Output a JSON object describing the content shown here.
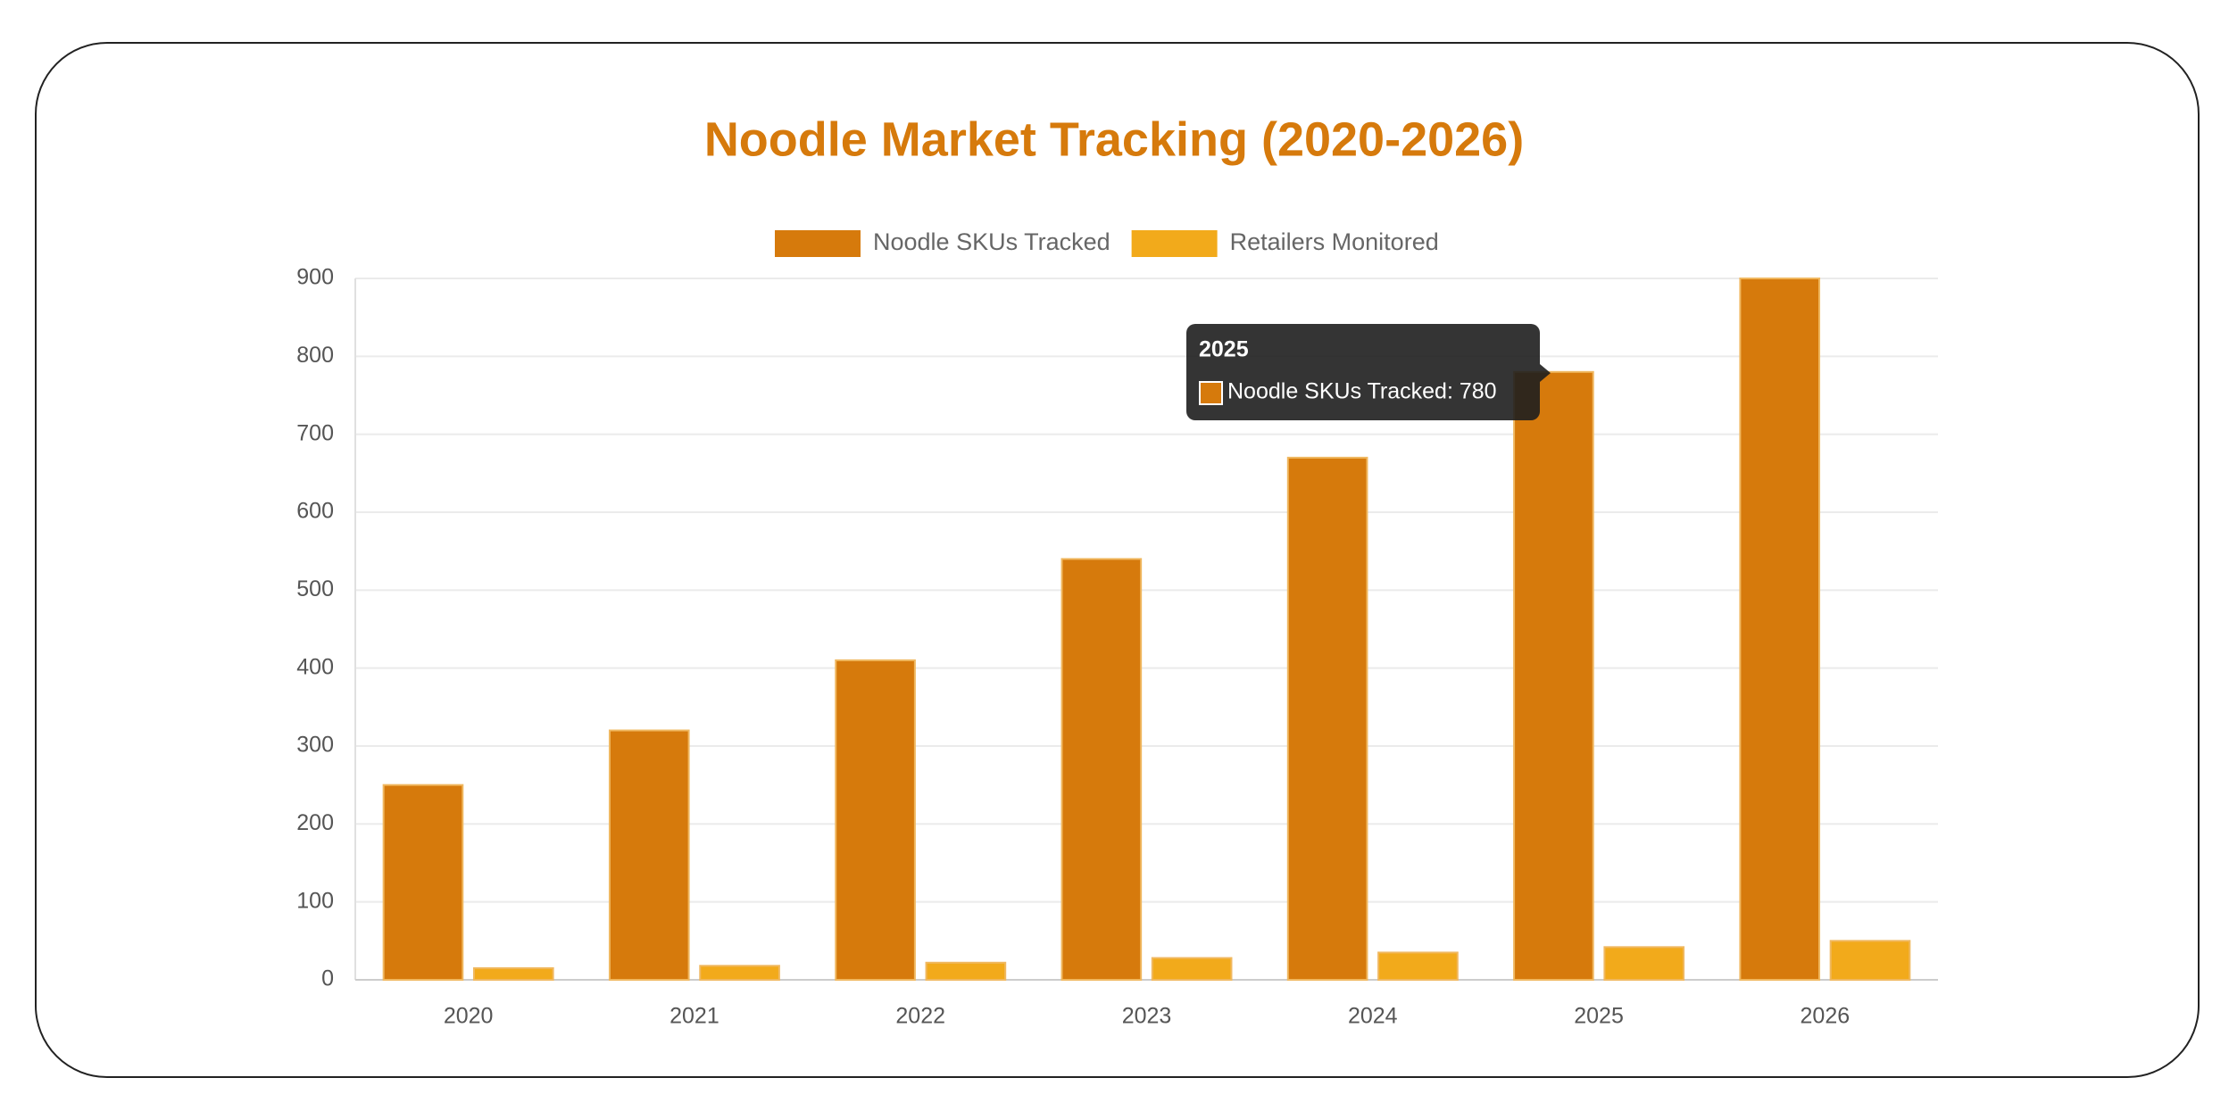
{
  "chart_data": {
    "type": "bar",
    "title": "Noodle Market Tracking (2020-2026)",
    "categories": [
      "2020",
      "2021",
      "2022",
      "2023",
      "2024",
      "2025",
      "2026"
    ],
    "series": [
      {
        "name": "Noodle SKUs Tracked",
        "color": "#d67a0c",
        "values": [
          250,
          320,
          410,
          540,
          670,
          780,
          900
        ]
      },
      {
        "name": "Retailers Monitored",
        "color": "#f2aa1b",
        "values": [
          15,
          18,
          22,
          28,
          35,
          42,
          50
        ]
      }
    ],
    "ylim": [
      0,
      900
    ],
    "yticks": [
      0,
      100,
      200,
      300,
      400,
      500,
      600,
      700,
      800,
      900
    ],
    "grid": true,
    "legend": "top",
    "tooltip": {
      "title": "2025",
      "text": "Noodle SKUs Tracked: 780"
    }
  }
}
